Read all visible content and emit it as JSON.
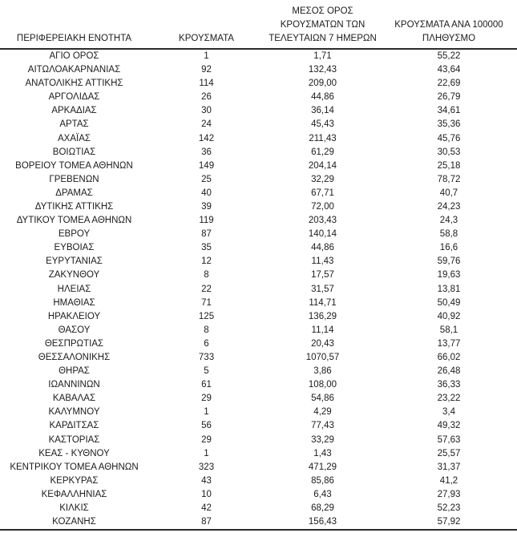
{
  "table": {
    "headers": [
      "ΠΕΡΙΦΕΡΕΙΑΚΗ ΕΝΟΤΗΤΑ",
      "ΚΡΟΥΣΜΑΤΑ",
      "ΜΕΣΟΣ ΟΡΟΣ\nΚΡΟΥΣΜΑΤΩΝ ΤΩΝ\nΤΕΛΕΥΤΑΙΩΝ 7 ΗΜΕΡΩΝ",
      "ΚΡΟΥΣΜΑΤΑ ΑΝΑ 100000\nΠΛΗΘΥΣΜΟ"
    ],
    "rows": [
      [
        "ΑΓΙΟ ΟΡΟΣ",
        "1",
        "1,71",
        "55,22"
      ],
      [
        "ΑΙΤΩΛΟΑΚΑΡΝΑΝΙΑΣ",
        "92",
        "132,43",
        "43,64"
      ],
      [
        "ΑΝΑΤΟΛΙΚΗΣ ΑΤΤΙΚΗΣ",
        "114",
        "209,00",
        "22,69"
      ],
      [
        "ΑΡΓΟΛΙΔΑΣ",
        "26",
        "44,86",
        "26,79"
      ],
      [
        "ΑΡΚΑΔΙΑΣ",
        "30",
        "36,14",
        "34,61"
      ],
      [
        "ΑΡΤΑΣ",
        "24",
        "45,43",
        "35,36"
      ],
      [
        "ΑΧΑΪΑΣ",
        "142",
        "211,43",
        "45,76"
      ],
      [
        "ΒΟΙΩΤΙΑΣ",
        "36",
        "61,29",
        "30,53"
      ],
      [
        "ΒΟΡΕΙΟΥ ΤΟΜΕΑ ΑΘΗΝΩΝ",
        "149",
        "204,14",
        "25,18"
      ],
      [
        "ΓΡΕΒΕΝΩΝ",
        "25",
        "32,29",
        "78,72"
      ],
      [
        "ΔΡΑΜΑΣ",
        "40",
        "67,71",
        "40,7"
      ],
      [
        "ΔΥΤΙΚΗΣ ΑΤΤΙΚΗΣ",
        "39",
        "72,00",
        "24,23"
      ],
      [
        "ΔΥΤΙΚΟΥ ΤΟΜΕΑ ΑΘΗΝΩΝ",
        "119",
        "203,43",
        "24,3"
      ],
      [
        "ΕΒΡΟΥ",
        "87",
        "140,14",
        "58,8"
      ],
      [
        "ΕΥΒΟΙΑΣ",
        "35",
        "44,86",
        "16,6"
      ],
      [
        "ΕΥΡΥΤΑΝΙΑΣ",
        "12",
        "11,43",
        "59,76"
      ],
      [
        "ΖΑΚΥΝΘΟΥ",
        "8",
        "17,57",
        "19,63"
      ],
      [
        "ΗΛΕΙΑΣ",
        "22",
        "31,57",
        "13,81"
      ],
      [
        "ΗΜΑΘΙΑΣ",
        "71",
        "114,71",
        "50,49"
      ],
      [
        "ΗΡΑΚΛΕΙΟΥ",
        "125",
        "136,29",
        "40,92"
      ],
      [
        "ΘΑΣΟΥ",
        "8",
        "11,14",
        "58,1"
      ],
      [
        "ΘΕΣΠΡΩΤΙΑΣ",
        "6",
        "20,43",
        "13,77"
      ],
      [
        "ΘΕΣΣΑΛΟΝΙΚΗΣ",
        "733",
        "1070,57",
        "66,02"
      ],
      [
        "ΘΗΡΑΣ",
        "5",
        "3,86",
        "26,48"
      ],
      [
        "ΙΩΑΝΝΙΝΩΝ",
        "61",
        "108,00",
        "36,33"
      ],
      [
        "ΚΑΒΑΛΑΣ",
        "29",
        "54,86",
        "23,22"
      ],
      [
        "ΚΑΛΥΜΝΟΥ",
        "1",
        "4,29",
        "3,4"
      ],
      [
        "ΚΑΡΔΙΤΣΑΣ",
        "56",
        "77,43",
        "49,32"
      ],
      [
        "ΚΑΣΤΟΡΙΑΣ",
        "29",
        "33,29",
        "57,63"
      ],
      [
        "ΚΕΑΣ - ΚΥΘΝΟΥ",
        "1",
        "1,43",
        "25,57"
      ],
      [
        "ΚΕΝΤΡΙΚΟΥ ΤΟΜΕΑ ΑΘΗΝΩΝ",
        "323",
        "471,29",
        "31,37"
      ],
      [
        "ΚΕΡΚΥΡΑΣ",
        "43",
        "85,86",
        "41,2"
      ],
      [
        "ΚΕΦΑΛΛΗΝΙΑΣ",
        "10",
        "6,43",
        "27,93"
      ],
      [
        "ΚΙΛΚΙΣ",
        "42",
        "68,29",
        "52,23"
      ],
      [
        "ΚΟΖΑΝΗΣ",
        "87",
        "156,43",
        "57,92"
      ]
    ]
  },
  "colors": {
    "text": "#1c1c1c",
    "rule": "#2b2b2b",
    "background": "#ffffff"
  }
}
